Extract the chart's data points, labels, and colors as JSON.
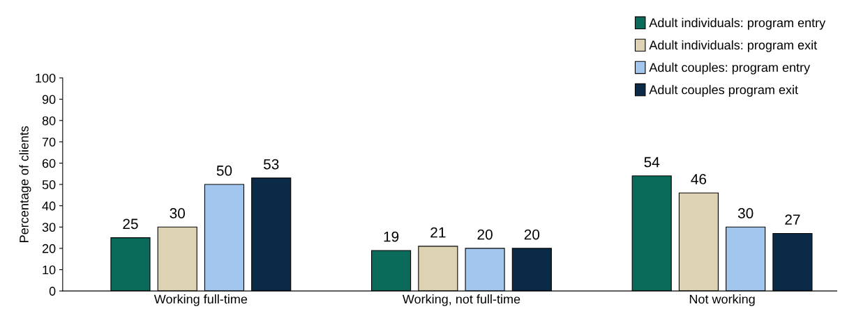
{
  "chart_data": {
    "type": "bar",
    "ylabel": "Percentage of clients",
    "categories": [
      "Working full-time",
      "Working, not full-time",
      "Not working"
    ],
    "series": [
      {
        "name": "Adult individuals: program entry",
        "color": "#0a6b5a",
        "values": [
          25,
          19,
          54
        ]
      },
      {
        "name": "Adult individuals: program exit",
        "color": "#ddd3b3",
        "values": [
          30,
          21,
          46
        ]
      },
      {
        "name": "Adult couples: program entry",
        "color": "#a3c6ee",
        "values": [
          50,
          20,
          30
        ]
      },
      {
        "name": "Adult couples program exit",
        "color": "#0b2a47",
        "values": [
          53,
          20,
          27
        ]
      }
    ],
    "ylim": [
      0,
      100
    ],
    "yticks": [
      0,
      10,
      20,
      30,
      40,
      50,
      60,
      70,
      80,
      90,
      100
    ],
    "data_labels": true,
    "legend": "top right",
    "grid": false
  }
}
